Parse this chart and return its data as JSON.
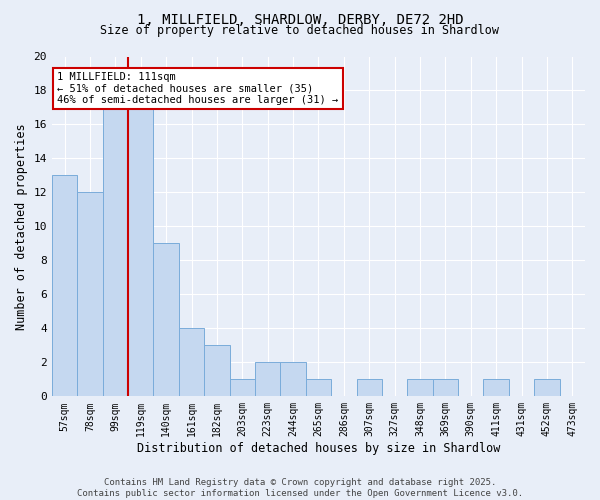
{
  "title_line1": "1, MILLFIELD, SHARDLOW, DERBY, DE72 2HD",
  "title_line2": "Size of property relative to detached houses in Shardlow",
  "xlabel": "Distribution of detached houses by size in Shardlow",
  "ylabel": "Number of detached properties",
  "categories": [
    "57sqm",
    "78sqm",
    "99sqm",
    "119sqm",
    "140sqm",
    "161sqm",
    "182sqm",
    "203sqm",
    "223sqm",
    "244sqm",
    "265sqm",
    "286sqm",
    "307sqm",
    "327sqm",
    "348sqm",
    "369sqm",
    "390sqm",
    "411sqm",
    "431sqm",
    "452sqm",
    "473sqm"
  ],
  "values": [
    13,
    12,
    17,
    17,
    9,
    4,
    3,
    1,
    2,
    2,
    1,
    0,
    1,
    0,
    1,
    1,
    0,
    1,
    0,
    1,
    0
  ],
  "bar_color": "#c5d8f0",
  "bar_edge_color": "#7aacda",
  "red_line_x": 2.5,
  "annotation_text": "1 MILLFIELD: 111sqm\n← 51% of detached houses are smaller (35)\n46% of semi-detached houses are larger (31) →",
  "annotation_box_color": "#ffffff",
  "annotation_box_edge": "#cc0000",
  "ylim": [
    0,
    20
  ],
  "yticks": [
    0,
    2,
    4,
    6,
    8,
    10,
    12,
    14,
    16,
    18,
    20
  ],
  "background_color": "#e8eef8",
  "grid_color": "#ffffff",
  "footer": "Contains HM Land Registry data © Crown copyright and database right 2025.\nContains public sector information licensed under the Open Government Licence v3.0."
}
